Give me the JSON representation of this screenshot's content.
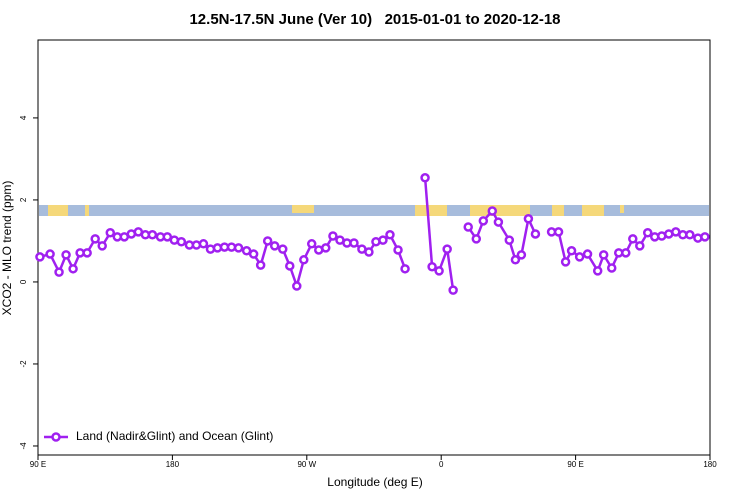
{
  "chart_data": {
    "type": "line",
    "title": "12.5N-17.5N June (Ver 10)   2015-01-01 to 2020-12-18",
    "x_label": "Longitude (deg E)",
    "y_label": "XCO2 - MLO trend (ppm)",
    "xlim": [
      90,
      540
    ],
    "xticks": [
      {
        "value": 90,
        "label": "90 E"
      },
      180,
      {
        "value": 270,
        "label": "90 W"
      },
      {
        "value": 360,
        "label": "0"
      },
      {
        "value": 450,
        "label": "90 E"
      },
      {
        "value": 540,
        "label": "180"
      }
    ],
    "ylim": [
      -4.22,
      5.9
    ],
    "yticks": [
      -4,
      -2,
      0,
      2,
      4
    ],
    "legend": "bottomleft",
    "x": [
      91.3,
      98.1,
      104.1,
      108.8,
      113.5,
      118.2,
      122.9,
      128.3,
      133.0,
      138.4,
      143.1,
      147.8,
      152.5,
      157.2,
      161.9,
      166.6,
      172.0,
      176.6,
      181.3,
      186.0,
      191.4,
      196.1,
      200.8,
      205.5,
      210.2,
      214.9,
      219.6,
      224.3,
      229.7,
      234.4,
      239.1,
      243.8,
      248.5,
      253.9,
      258.6,
      263.3,
      268.0,
      273.3,
      278.0,
      282.7,
      287.5,
      292.2,
      296.9,
      301.6,
      306.9,
      311.6,
      316.3,
      321.0,
      325.7,
      331.1,
      335.8,
      340.5,
      345.2,
      349.2,
      353.9,
      358.6,
      364.0,
      368.0,
      373.4,
      378.1,
      383.5,
      388.2,
      394.2,
      398.3,
      405.6,
      409.7,
      413.7,
      418.4,
      423.1,
      428.5,
      433.9,
      438.6,
      443.3,
      447.3,
      452.7,
      458.0,
      464.8,
      468.8,
      474.2,
      478.9,
      483.6,
      488.3,
      493.0,
      498.3,
      503.0,
      507.7,
      512.4,
      517.1,
      521.8,
      526.5,
      531.9,
      536.6
    ],
    "series": [
      {
        "name": "Land (Nadir&Glint) and Ocean (Glint)",
        "color": "#a020f0",
        "values": [
          0.61,
          0.68,
          0.24,
          0.66,
          0.32,
          0.71,
          0.71,
          1.05,
          0.88,
          1.2,
          1.1,
          1.1,
          1.17,
          1.22,
          1.15,
          1.15,
          1.1,
          1.1,
          1.02,
          0.98,
          0.9,
          0.9,
          0.93,
          0.8,
          0.83,
          0.85,
          0.85,
          0.83,
          0.76,
          0.68,
          0.41,
          1.0,
          0.88,
          0.8,
          0.39,
          -0.1,
          0.54,
          0.93,
          0.78,
          0.83,
          1.12,
          1.02,
          0.95,
          0.95,
          0.8,
          0.73,
          0.98,
          1.02,
          1.15,
          0.78,
          0.32,
          null,
          null,
          2.54,
          0.37,
          0.27,
          0.8,
          -0.2,
          null,
          1.34,
          1.05,
          1.49,
          1.73,
          1.46,
          1.02,
          0.54,
          0.66,
          1.54,
          1.17,
          null,
          1.22,
          1.22,
          0.49,
          0.76,
          0.61,
          0.68,
          0.27,
          0.66,
          0.34,
          0.71,
          0.71,
          1.05,
          0.88,
          1.2,
          1.1,
          1.12,
          1.17,
          1.22,
          1.15,
          1.15,
          1.07,
          1.1
        ]
      }
    ]
  }
}
